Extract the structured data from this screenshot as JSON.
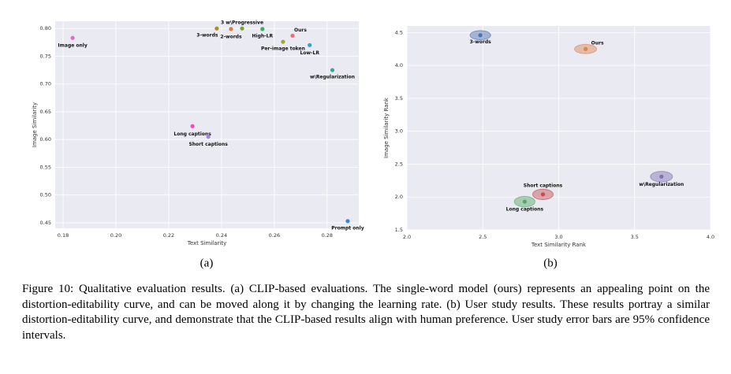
{
  "chart_data": [
    {
      "type": "scatter",
      "xlabel": "Text Similarity",
      "ylabel": "Image Similarity",
      "labels": [
        "Image only",
        "3-words",
        "2-words",
        "3 w\\Progressive",
        "High-LR",
        "Ours",
        "Per-image token",
        "Low-LR",
        "w\\Regularization",
        "Long captions",
        "Short captions",
        "Prompt only"
      ],
      "x": [
        0.1836,
        0.2382,
        0.2436,
        0.2478,
        0.2555,
        0.2669,
        0.2633,
        0.2734,
        0.282,
        0.229,
        0.235,
        0.2878
      ],
      "values": [
        0.783,
        0.8,
        0.799,
        0.8,
        0.799,
        0.787,
        0.776,
        0.77,
        0.725,
        0.624,
        0.605,
        0.453
      ],
      "colors": [
        "#e36ac6",
        "#b0892b",
        "#e07b39",
        "#7aa33a",
        "#3aaf63",
        "#f26d6d",
        "#a3a332",
        "#3aa0c8",
        "#37a59c",
        "#f04fbb",
        "#a485e6",
        "#3a86d4"
      ],
      "xlim": [
        0.177,
        0.292
      ],
      "xticks": [
        0.18,
        {
          "value": 0.2,
          "label": "0.20"
        },
        0.22,
        0.24,
        0.26,
        0.28
      ],
      "ylim": [
        0.44,
        0.813
      ],
      "yticks": [
        0.45,
        {
          "value": 0.5,
          "label": "0.50"
        },
        0.55,
        {
          "value": 0.6,
          "label": "0.60"
        },
        0.65,
        {
          "value": 0.7,
          "label": "0.70"
        },
        0.75,
        {
          "value": 0.8,
          "label": "0.80"
        }
      ],
      "grid": true
    },
    {
      "type": "scatter",
      "xlabel": "Text Similarity Rank",
      "ylabel": "Image Similarity Rank",
      "labels": [
        "3-words",
        "Ours",
        "w\\Regularization",
        "Short captions",
        "Long captions"
      ],
      "x": [
        2.484,
        3.177,
        3.677,
        2.896,
        2.776
      ],
      "values": [
        4.46,
        4.25,
        2.31,
        2.04,
        1.93
      ],
      "x_errors": [
        0.068,
        0.073,
        0.073,
        0.068,
        0.068
      ],
      "y_errors": [
        0.07,
        0.07,
        0.08,
        0.08,
        0.08
      ],
      "colors": [
        "#4c72b0",
        "#dd8452",
        "#8172b3",
        "#c44e52",
        "#55a868"
      ],
      "xlim": [
        2.0,
        4.0
      ],
      "xticks": [
        {
          "value": 2,
          "label": "2.0"
        },
        2.5,
        {
          "value": 3,
          "label": "3.0"
        },
        3.5,
        {
          "value": 4,
          "label": "4.0"
        }
      ],
      "ylim": [
        1.5,
        4.6
      ],
      "yticks": [
        1.5,
        {
          "value": 2,
          "label": "2.0"
        },
        2.5,
        {
          "value": 3,
          "label": "3.0"
        },
        3.5,
        {
          "value": 4,
          "label": "4.0"
        },
        4.5
      ],
      "grid": true
    }
  ],
  "figure": {
    "subcaptions": [
      "(a)",
      "(b)"
    ],
    "caption": "Figure 10: Qualitative evaluation results. (a) CLIP-based evaluations. The single-word model (ours) represents an appealing point on the distortion-editability curve, and can be moved along it by changing the learning rate. (b) User study results. These results portray a similar distortion-editability curve, and demonstrate that the CLIP-based results align with human preference. User study error bars are 95% confidence intervals."
  }
}
